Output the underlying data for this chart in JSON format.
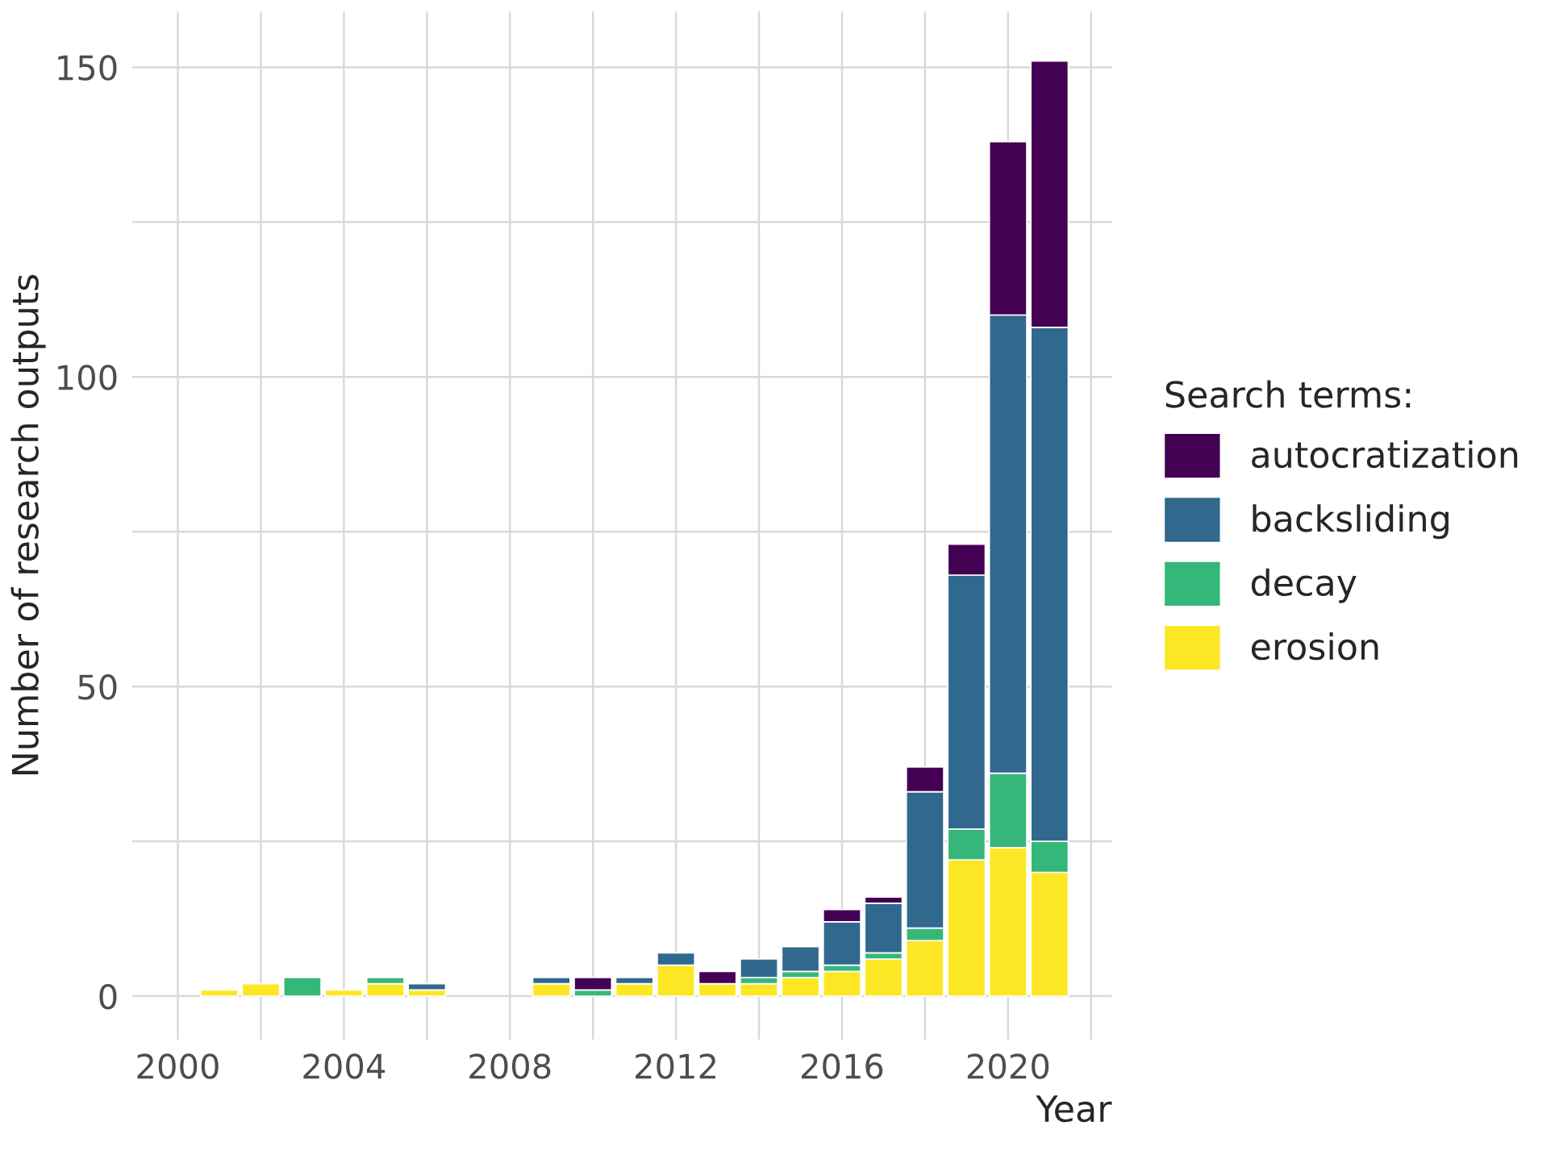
{
  "chart_data": {
    "type": "bar",
    "stacked": true,
    "xlabel": "Year",
    "ylabel": "Number of research outputs",
    "legend_title": "Search terms:",
    "legend": "right",
    "grid": true,
    "x": [
      2001,
      2002,
      2003,
      2004,
      2005,
      2006,
      2009,
      2010,
      2011,
      2012,
      2013,
      2014,
      2015,
      2016,
      2017,
      2018,
      2019,
      2020,
      2021
    ],
    "series": [
      {
        "name": "erosion",
        "color": "#fde725",
        "values": [
          1,
          2,
          null,
          1,
          2,
          1,
          2,
          null,
          2,
          5,
          2,
          2,
          3,
          4,
          6,
          9,
          22,
          24,
          20
        ]
      },
      {
        "name": "decay",
        "color": "#35b779",
        "values": [
          null,
          null,
          3,
          null,
          1,
          null,
          null,
          1,
          null,
          null,
          null,
          1,
          1,
          1,
          1,
          2,
          5,
          12,
          5
        ]
      },
      {
        "name": "backsliding",
        "color": "#31688e",
        "values": [
          null,
          null,
          null,
          null,
          null,
          1,
          1,
          null,
          1,
          2,
          null,
          3,
          4,
          7,
          8,
          22,
          41,
          74,
          83
        ]
      },
      {
        "name": "autocratization",
        "color": "#440154",
        "values": [
          null,
          null,
          null,
          null,
          null,
          null,
          null,
          2,
          null,
          null,
          2,
          null,
          null,
          2,
          1,
          4,
          5,
          28,
          43
        ]
      }
    ],
    "xlim": [
      1998.9,
      2022.5
    ],
    "xticks": [
      2000,
      {
        "value": 2002,
        "label": null
      },
      2004,
      {
        "value": 2006,
        "label": null
      },
      2008,
      {
        "value": 2010,
        "label": null
      },
      2012,
      {
        "value": 2014,
        "label": null
      },
      2016,
      {
        "value": 2018,
        "label": null
      },
      2020,
      {
        "value": 2022,
        "label": null
      }
    ],
    "ylim": [
      -7,
      159
    ],
    "yticks": [
      0,
      {
        "value": 25,
        "label": null
      },
      50,
      {
        "value": 75,
        "label": null
      },
      100,
      {
        "value": 125,
        "label": null
      },
      150
    ]
  }
}
